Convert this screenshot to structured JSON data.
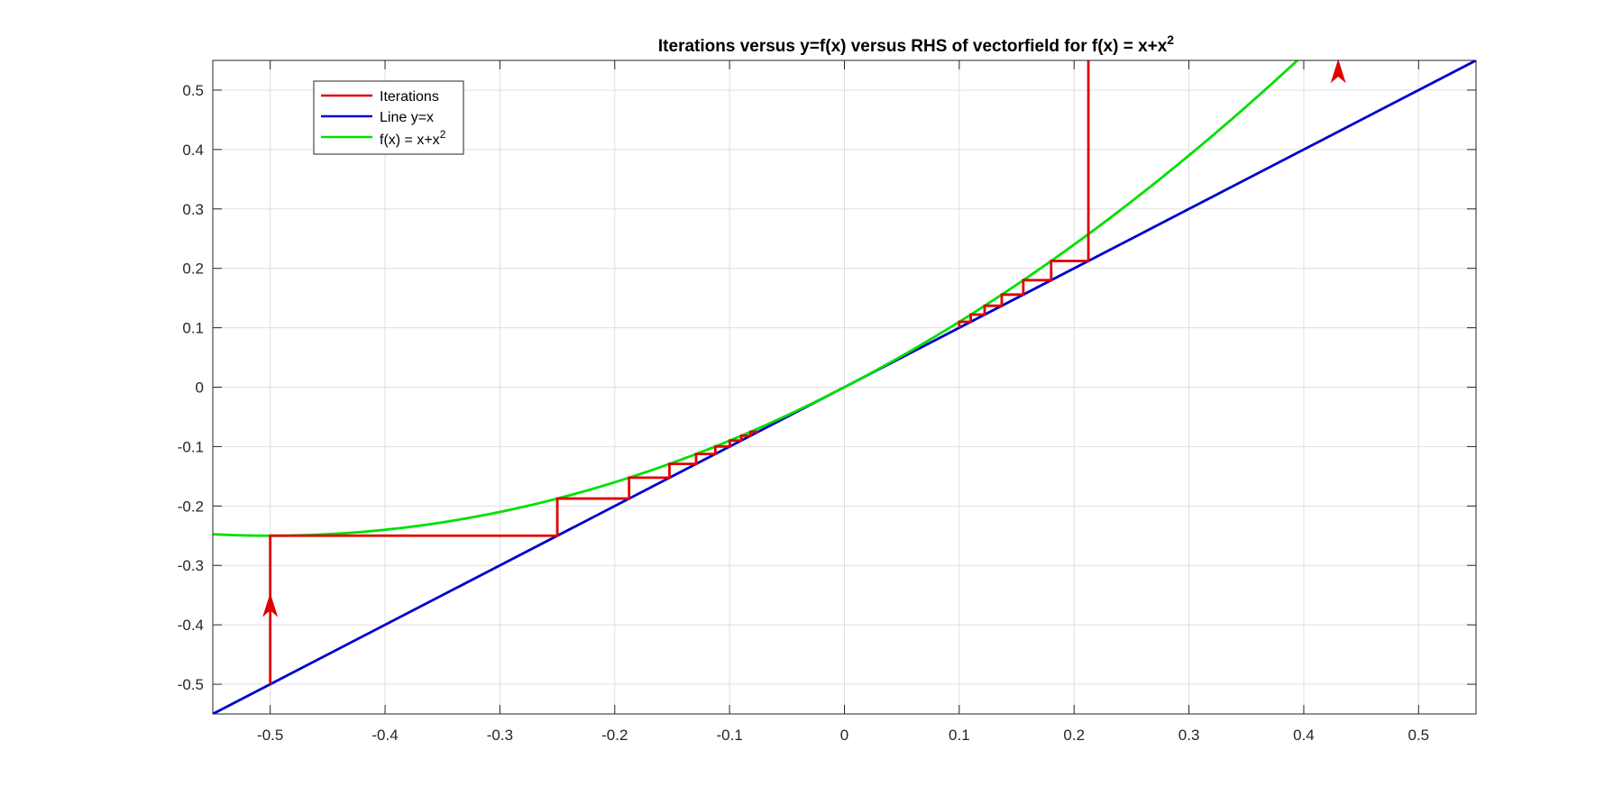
{
  "chart_data": {
    "type": "line",
    "title": {
      "prefix": "Iterations versus y=f(x) versus RHS of vectorfield for f(x) = x+x",
      "superscript": "2"
    },
    "xlabel": "",
    "ylabel": "",
    "xlim": [
      -0.55,
      0.55
    ],
    "ylim": [
      -0.55,
      0.55
    ],
    "grid": true,
    "legend_placement": "top-left",
    "x_ticks": [
      -0.5,
      -0.4,
      -0.3,
      -0.2,
      -0.1,
      0,
      0.1,
      0.2,
      0.3,
      0.4,
      0.5
    ],
    "x_tick_labels": [
      "-0.5",
      "-0.4",
      "-0.3",
      "-0.2",
      "-0.1",
      "0",
      "0.1",
      "0.2",
      "0.3",
      "0.4",
      "0.5"
    ],
    "y_ticks": [
      0.5,
      0.4,
      0.3,
      0.2,
      0.1,
      0,
      -0.1,
      -0.2,
      -0.3,
      -0.4,
      -0.5
    ],
    "y_tick_labels": [
      "0.5",
      "0.4",
      "0.3",
      "0.2",
      "0.1",
      "0",
      "-0.1",
      "-0.2",
      "-0.3",
      "-0.4",
      "-0.5"
    ],
    "legend": [
      {
        "label": "Iterations",
        "color": "#e00000"
      },
      {
        "label": "Line y=x",
        "color": "#0000cc"
      },
      {
        "label": "f(x) = x+x",
        "superscript": "2",
        "color": "#00e000"
      }
    ],
    "series": [
      {
        "name": "Iterations",
        "color": "#e00000",
        "kind": "cobweb",
        "x0": -0.5,
        "steps": 9
      },
      {
        "name": "Iterations",
        "color": "#e00000",
        "kind": "cobweb",
        "x0": 0.1,
        "steps": 6
      },
      {
        "name": "Line y=x",
        "color": "#0000cc",
        "kind": "function",
        "x": [
          -0.55,
          0.55
        ],
        "y": [
          -0.55,
          0.55
        ]
      },
      {
        "name": "f(x) = x+x²",
        "color": "#00e000",
        "kind": "function",
        "expression": "x+x^2",
        "x_range": [
          -0.55,
          0.55
        ]
      }
    ],
    "arrows": [
      {
        "x": -0.5,
        "y": -0.35,
        "direction": "up",
        "color": "#e00000"
      },
      {
        "x": 0.43,
        "y": 0.55,
        "direction": "up",
        "color": "#e00000"
      }
    ]
  }
}
